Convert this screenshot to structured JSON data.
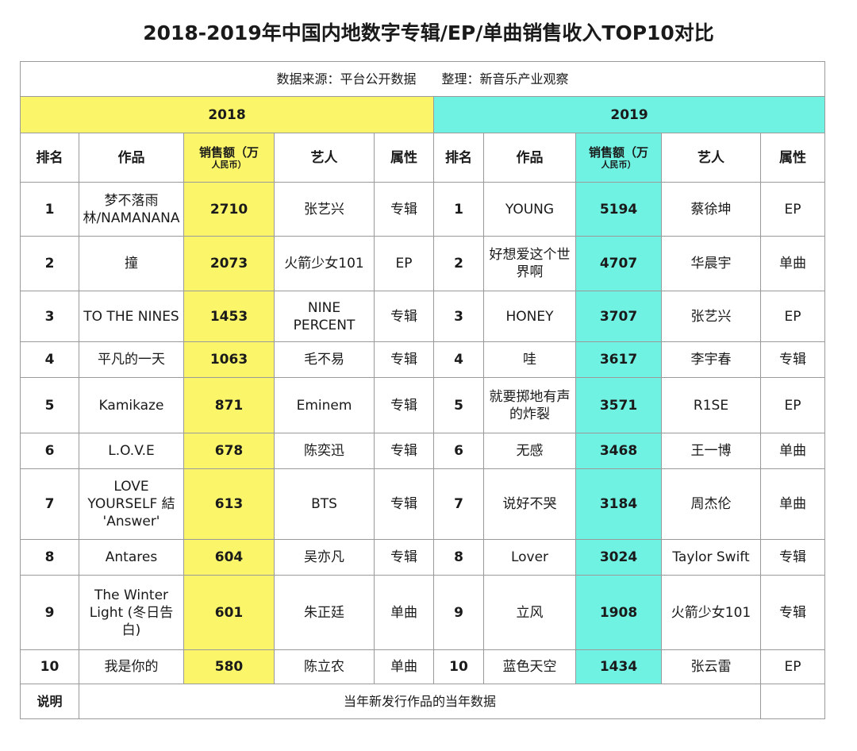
{
  "title": "2018-2019年中国内地数字专辑/EP/单曲销售收入TOP10对比",
  "source_line": "数据来源：平台公开数据　　整理：新音乐产业观察",
  "years": [
    "2018",
    "2019"
  ],
  "headers": {
    "rank": "排名",
    "work": "作品",
    "sales": "销售额（万",
    "sales_unit": "人民币）",
    "artist": "艺人",
    "type": "属性"
  },
  "rows": [
    {
      "r18": "1",
      "w18": "梦不落雨林/NAMANANA",
      "s18": "2710",
      "a18": "张艺兴",
      "t18": "专辑",
      "r19": "1",
      "w19": "YOUNG",
      "s19": "5194",
      "a19": "蔡徐坤",
      "t19": "EP"
    },
    {
      "r18": "2",
      "w18": "撞",
      "s18": "2073",
      "a18": "火箭少女101",
      "t18": "EP",
      "r19": "2",
      "w19": "好想爱这个世界啊",
      "s19": "4707",
      "a19": "华晨宇",
      "t19": "单曲"
    },
    {
      "r18": "3",
      "w18": "TO THE NINES",
      "s18": "1453",
      "a18": "NINE PERCENT",
      "t18": "专辑",
      "r19": "3",
      "w19": "HONEY",
      "s19": "3707",
      "a19": "张艺兴",
      "t19": "EP"
    },
    {
      "r18": "4",
      "w18": "平凡的一天",
      "s18": "1063",
      "a18": "毛不易",
      "t18": "专辑",
      "r19": "4",
      "w19": "哇",
      "s19": "3617",
      "a19": "李宇春",
      "t19": "专辑"
    },
    {
      "r18": "5",
      "w18": "Kamikaze",
      "s18": "871",
      "a18": "Eminem",
      "t18": "专辑",
      "r19": "5",
      "w19": "就要掷地有声的炸裂",
      "s19": "3571",
      "a19": "R1SE",
      "t19": "EP"
    },
    {
      "r18": "6",
      "w18": "L.O.V.E",
      "s18": "678",
      "a18": "陈奕迅",
      "t18": "专辑",
      "r19": "6",
      "w19": "无感",
      "s19": "3468",
      "a19": "王一博",
      "t19": "单曲"
    },
    {
      "r18": "7",
      "w18": "LOVE YOURSELF 結 'Answer'",
      "s18": "613",
      "a18": "BTS",
      "t18": "专辑",
      "r19": "7",
      "w19": "说好不哭",
      "s19": "3184",
      "a19": "周杰伦",
      "t19": "单曲"
    },
    {
      "r18": "8",
      "w18": "Antares",
      "s18": "604",
      "a18": "吴亦凡",
      "t18": "专辑",
      "r19": "8",
      "w19": "Lover",
      "s19": "3024",
      "a19": "Taylor Swift",
      "t19": "专辑"
    },
    {
      "r18": "9",
      "w18": "The Winter Light (冬日告白)",
      "s18": "601",
      "a18": "朱正廷",
      "t18": "单曲",
      "r19": "9",
      "w19": "立风",
      "s19": "1908",
      "a19": "火箭少女101",
      "t19": "专辑"
    },
    {
      "r18": "10",
      "w18": "我是你的",
      "s18": "580",
      "a18": "陈立农",
      "t18": "单曲",
      "r19": "10",
      "w19": "蓝色天空",
      "s19": "1434",
      "a19": "张云雷",
      "t19": "EP"
    }
  ],
  "note": {
    "label": "说明",
    "text": "当年新发行作品的当年数据"
  },
  "colors": {
    "2018": "#fbf569",
    "2019": "#6ff2e2"
  }
}
